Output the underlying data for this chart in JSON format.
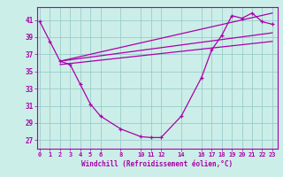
{
  "xlabel": "Windchill (Refroidissement éolien,°C)",
  "background_color": "#cceee8",
  "line_color": "#aa00aa",
  "grid_color": "#99cccc",
  "x_ticks": [
    0,
    1,
    2,
    3,
    4,
    5,
    6,
    8,
    10,
    11,
    12,
    14,
    16,
    17,
    18,
    19,
    20,
    21,
    22,
    23
  ],
  "y_ticks": [
    27,
    29,
    31,
    33,
    35,
    37,
    39,
    41
  ],
  "ylim": [
    26.0,
    42.5
  ],
  "xlim": [
    -0.3,
    23.5
  ],
  "curve1_x": [
    0,
    1,
    2,
    3,
    4,
    5,
    6,
    8,
    10,
    11,
    12,
    14,
    16,
    17,
    18,
    19,
    20,
    21,
    22,
    23
  ],
  "curve1_y": [
    40.8,
    38.5,
    36.2,
    35.8,
    33.5,
    31.2,
    29.8,
    28.3,
    27.4,
    27.3,
    27.3,
    29.8,
    34.3,
    37.5,
    39.2,
    41.5,
    41.2,
    41.8,
    40.8,
    40.5
  ],
  "line1_x": [
    2,
    23
  ],
  "line1_y": [
    36.2,
    41.8
  ],
  "line2_x": [
    2,
    23
  ],
  "line2_y": [
    36.2,
    39.5
  ],
  "line3_x": [
    2,
    23
  ],
  "line3_y": [
    35.8,
    38.5
  ]
}
